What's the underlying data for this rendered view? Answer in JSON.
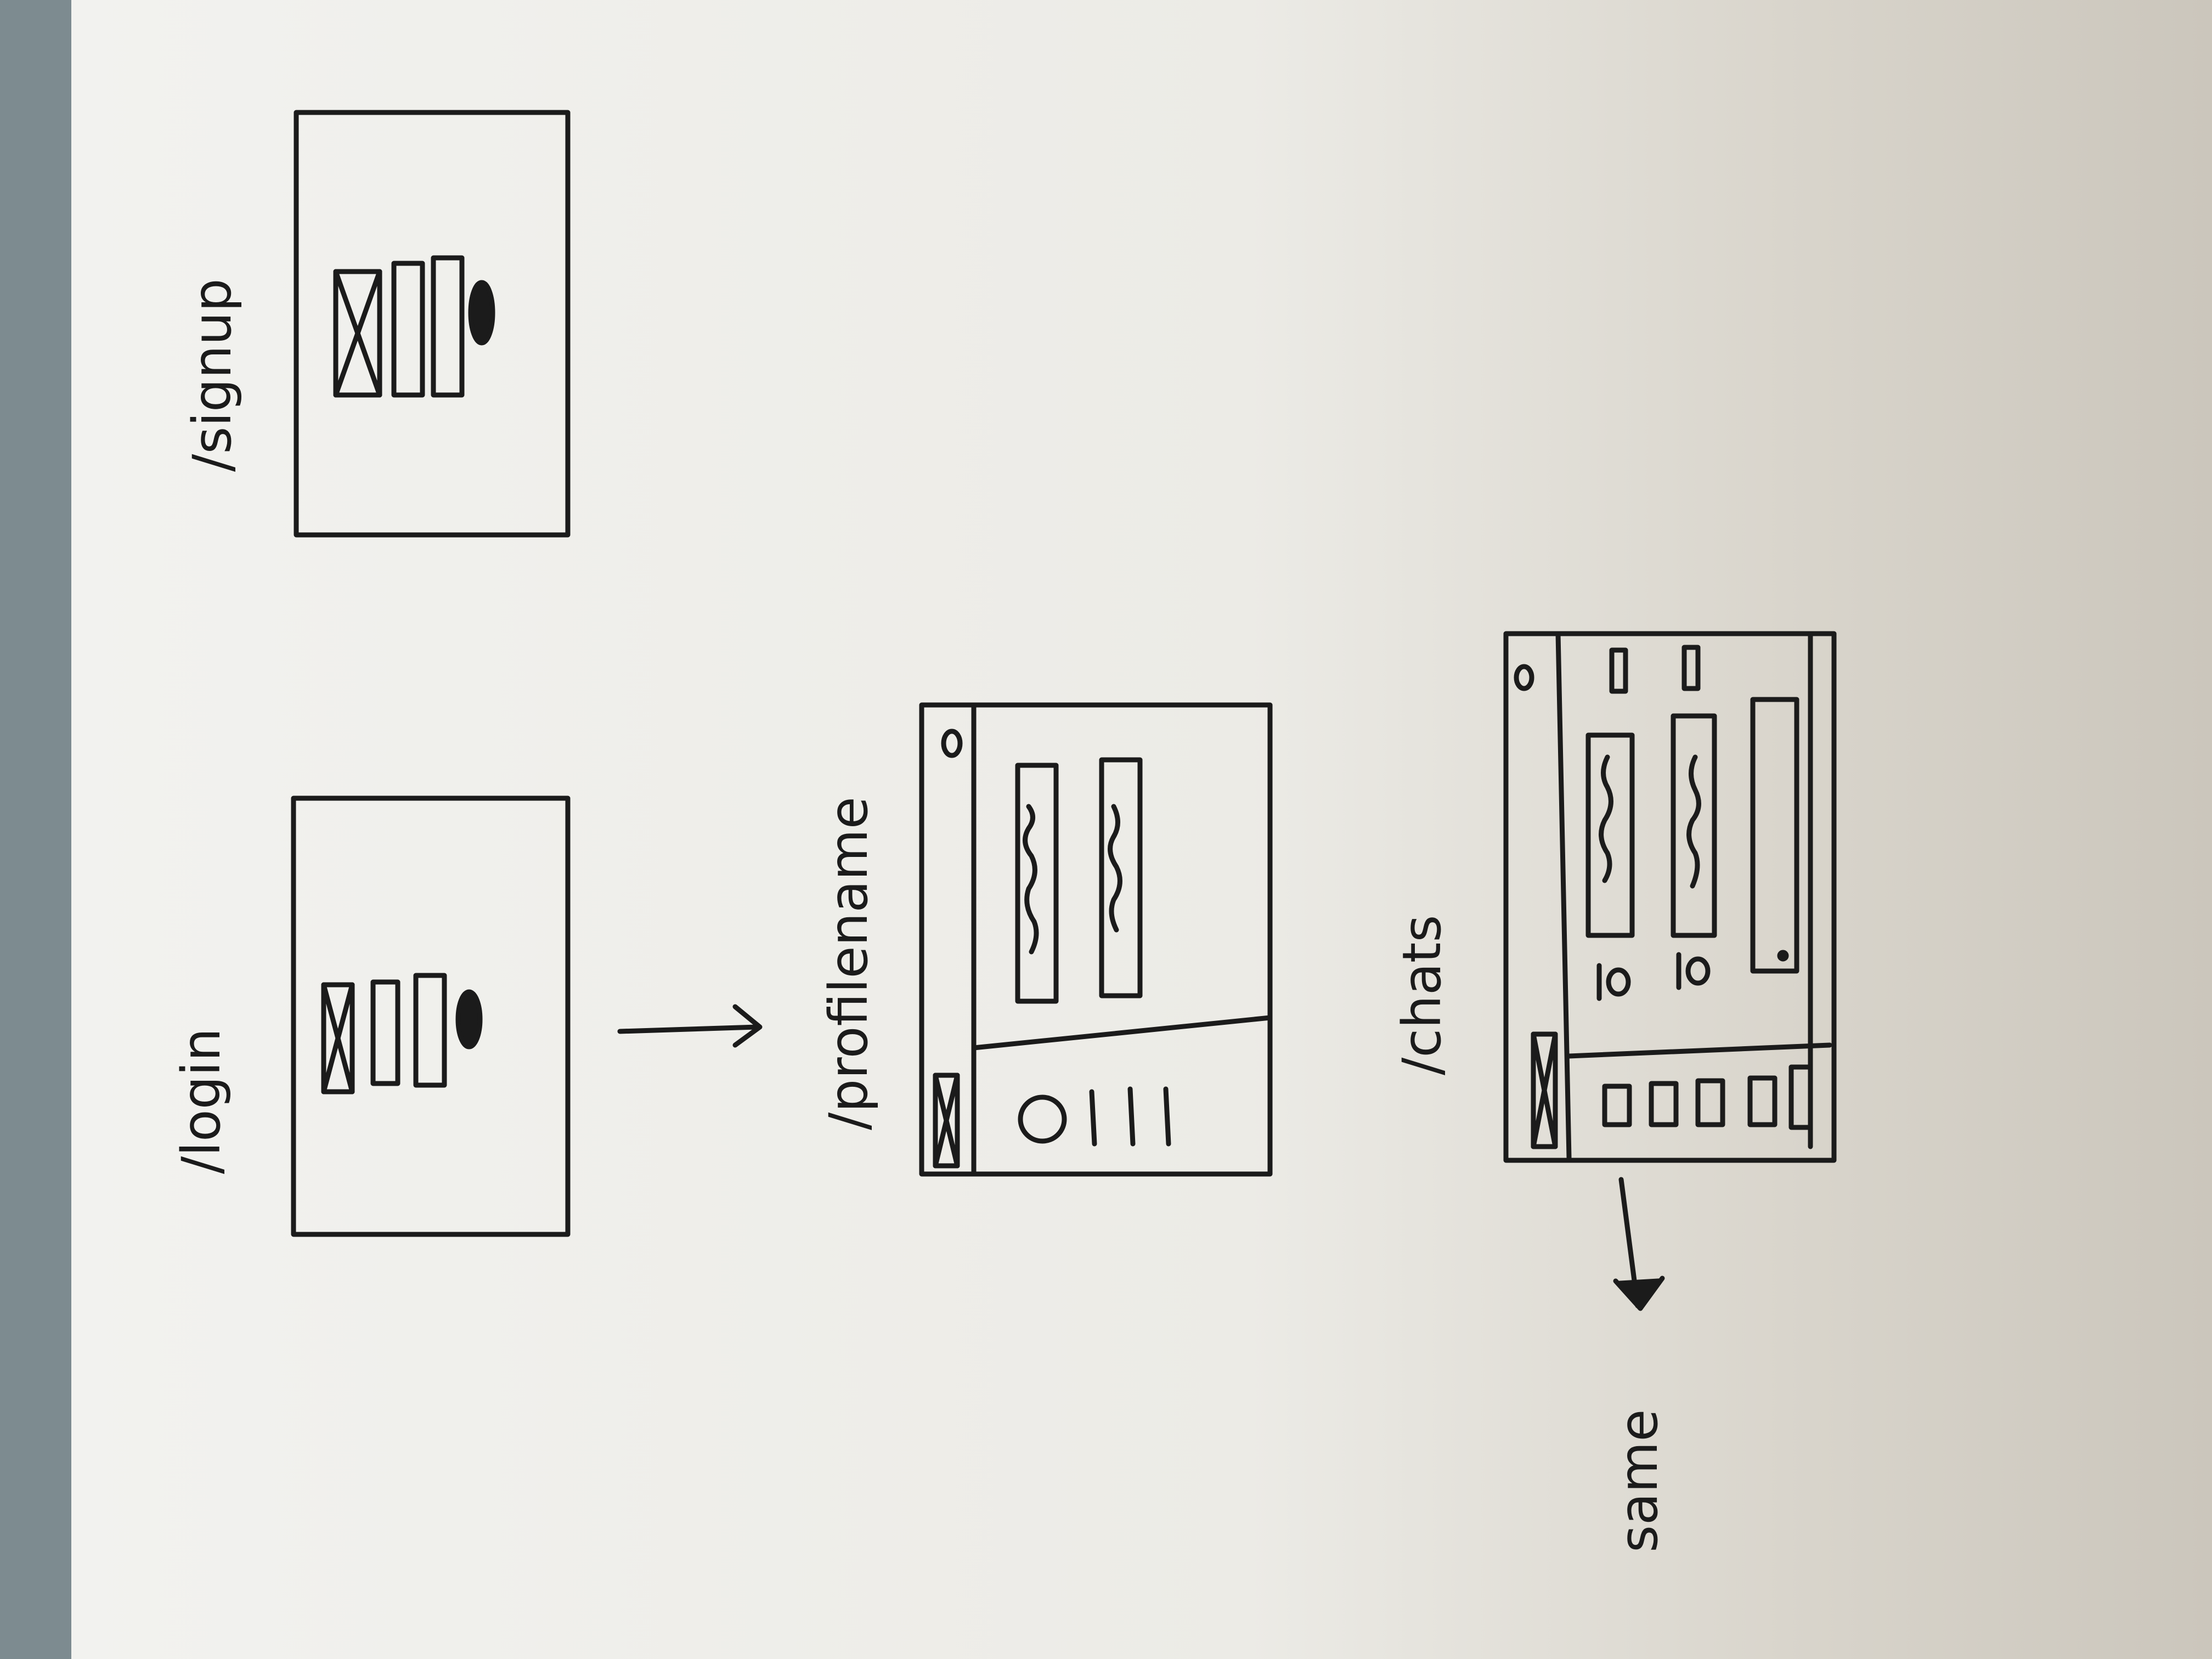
{
  "labels": {
    "signup": "/signup",
    "login": "/login",
    "profile": "/profilename",
    "chats": "/chats",
    "same": "same"
  },
  "colors": {
    "ink": "#1b1b1b",
    "paper": "#ecebe6",
    "shadow": "#cfcbc2",
    "background": "#7d8b90"
  }
}
